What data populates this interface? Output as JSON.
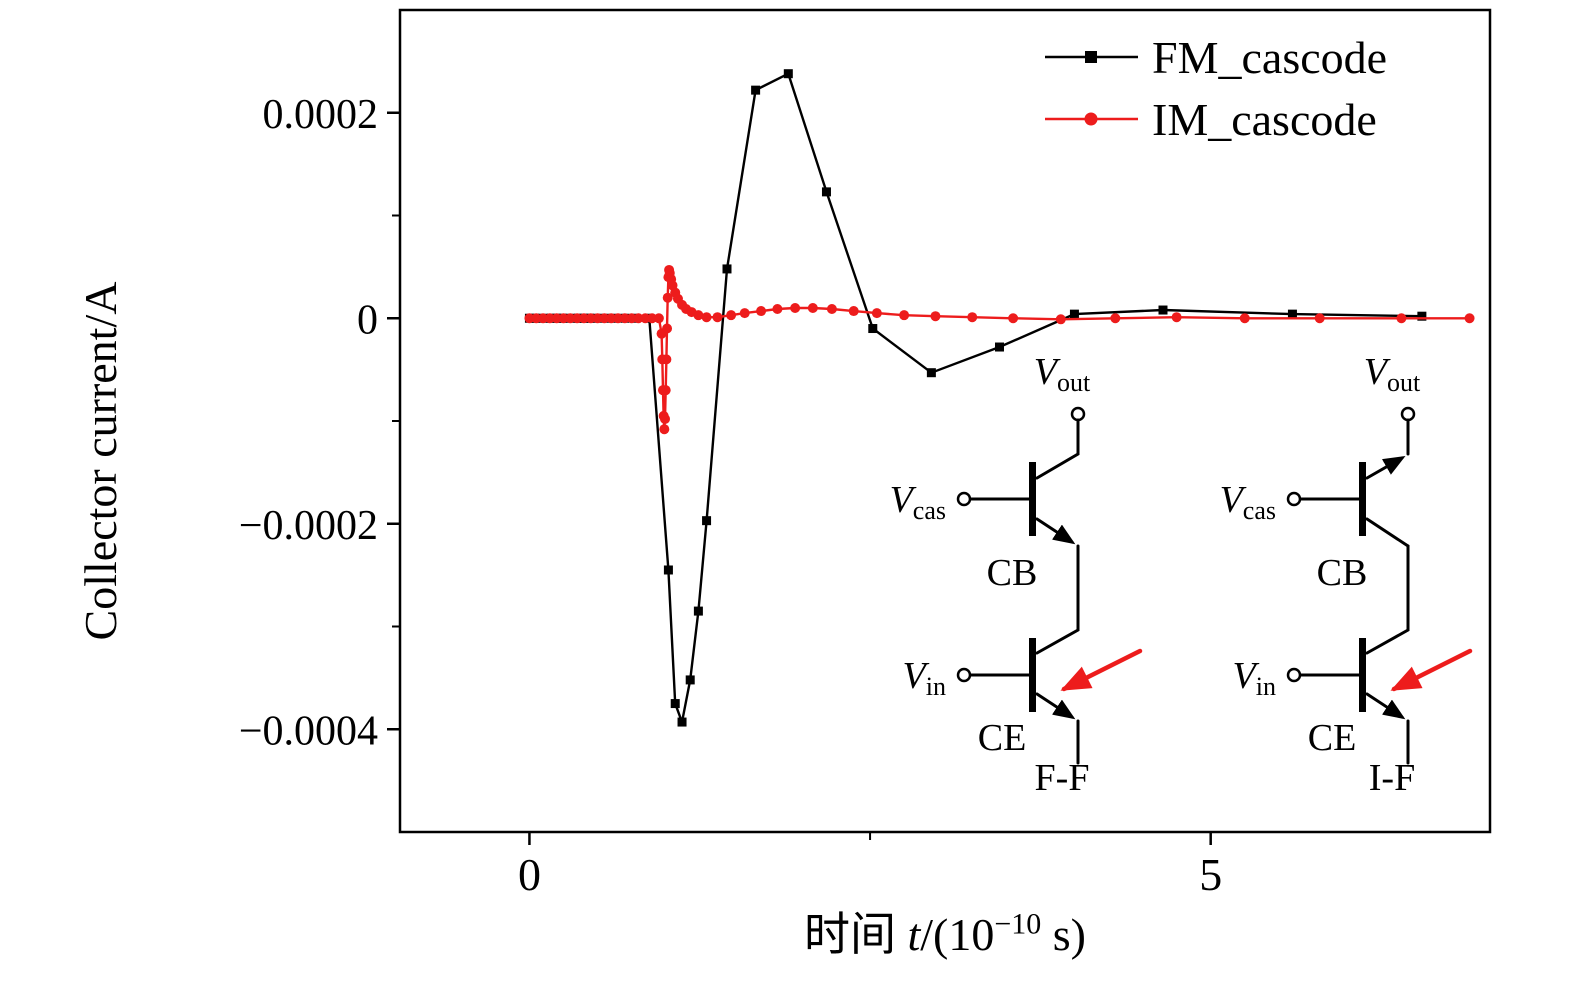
{
  "ylabel": "Collector current/A",
  "xlabel_parts": {
    "prefix": "时间 ",
    "variable": "t",
    "open": "/(10",
    "exponent": "−10",
    "close": " s)"
  },
  "chart_data": {
    "type": "line",
    "title": "",
    "xlabel": "时间 t/(10^−10 s)",
    "ylabel": "Collector current/A",
    "xlim": [
      -0.95,
      7.05
    ],
    "ylim": [
      -0.0005,
      0.0003
    ],
    "grid": false,
    "legend_position": "top-right",
    "x_major_ticks": [
      {
        "value": 0,
        "label": "0"
      },
      {
        "value": 5,
        "label": "5"
      }
    ],
    "x_minor_ticks": [
      2.5
    ],
    "y_major_ticks": [
      {
        "value": 0.0002,
        "label": "0.0002"
      },
      {
        "value": 0,
        "label": "0"
      },
      {
        "value": -0.0002,
        "label": "−0.0002"
      },
      {
        "value": -0.0004,
        "label": "−0.0004"
      }
    ],
    "y_minor_ticks": [
      0.0001,
      -0.0001,
      -0.0003
    ],
    "series": [
      {
        "name": "FM_cascode",
        "color": "#000000",
        "marker": "square",
        "points": [
          [
            0.0,
            0
          ],
          [
            0.04,
            0
          ],
          [
            0.08,
            0
          ],
          [
            0.12,
            0
          ],
          [
            0.16,
            0
          ],
          [
            0.2,
            0
          ],
          [
            0.24,
            0
          ],
          [
            0.28,
            0
          ],
          [
            0.32,
            0
          ],
          [
            0.36,
            0
          ],
          [
            0.4,
            0
          ],
          [
            0.44,
            0
          ],
          [
            0.48,
            0
          ],
          [
            0.52,
            0
          ],
          [
            0.57,
            0
          ],
          [
            0.63,
            0
          ],
          [
            0.7,
            0
          ],
          [
            0.78,
            0
          ],
          [
            0.88,
            0
          ],
          [
            1.02,
            -0.000245
          ],
          [
            1.07,
            -0.000375
          ],
          [
            1.12,
            -0.000393
          ],
          [
            1.18,
            -0.000352
          ],
          [
            1.24,
            -0.000285
          ],
          [
            1.3,
            -0.000197
          ],
          [
            1.45,
            4.8e-05
          ],
          [
            1.66,
            0.000222
          ],
          [
            1.9,
            0.000238
          ],
          [
            2.18,
            0.000123
          ],
          [
            2.52,
            -1e-05
          ],
          [
            2.95,
            -5.3e-05
          ],
          [
            3.45,
            -2.8e-05
          ],
          [
            4.0,
            4e-06
          ],
          [
            4.65,
            8e-06
          ],
          [
            5.6,
            4e-06
          ],
          [
            6.55,
            2e-06
          ]
        ]
      },
      {
        "name": "IM_cascode",
        "color": "#ed1c1c",
        "marker": "circle",
        "points": [
          [
            0.0,
            0
          ],
          [
            0.05,
            0
          ],
          [
            0.1,
            0
          ],
          [
            0.15,
            0
          ],
          [
            0.2,
            0
          ],
          [
            0.25,
            0
          ],
          [
            0.3,
            0
          ],
          [
            0.35,
            0
          ],
          [
            0.4,
            0
          ],
          [
            0.45,
            0
          ],
          [
            0.5,
            0
          ],
          [
            0.55,
            0
          ],
          [
            0.6,
            0
          ],
          [
            0.65,
            0
          ],
          [
            0.7,
            0
          ],
          [
            0.75,
            0
          ],
          [
            0.8,
            0
          ],
          [
            0.85,
            0
          ],
          [
            0.9,
            0
          ],
          [
            0.95,
            0
          ],
          [
            0.97,
            -1.5e-05
          ],
          [
            0.975,
            -4e-05
          ],
          [
            0.98,
            -7e-05
          ],
          [
            0.985,
            -9.5e-05
          ],
          [
            0.99,
            -0.000108
          ],
          [
            0.995,
            -9.8e-05
          ],
          [
            1.0,
            -7e-05
          ],
          [
            1.005,
            -4e-05
          ],
          [
            1.01,
            -1e-05
          ],
          [
            1.015,
            2e-05
          ],
          [
            1.02,
            4e-05
          ],
          [
            1.025,
            4.7e-05
          ],
          [
            1.03,
            4.4e-05
          ],
          [
            1.04,
            3.8e-05
          ],
          [
            1.05,
            3.2e-05
          ],
          [
            1.07,
            2.5e-05
          ],
          [
            1.09,
            1.9e-05
          ],
          [
            1.12,
            1.3e-05
          ],
          [
            1.15,
            9e-06
          ],
          [
            1.19,
            6e-06
          ],
          [
            1.24,
            3e-06
          ],
          [
            1.3,
            1e-06
          ],
          [
            1.38,
            1e-06
          ],
          [
            1.48,
            3e-06
          ],
          [
            1.58,
            5e-06
          ],
          [
            1.7,
            7e-06
          ],
          [
            1.82,
            9e-06
          ],
          [
            1.95,
            1e-05
          ],
          [
            2.08,
            1e-05
          ],
          [
            2.22,
            9e-06
          ],
          [
            2.38,
            7e-06
          ],
          [
            2.55,
            5e-06
          ],
          [
            2.75,
            3e-06
          ],
          [
            2.98,
            2e-06
          ],
          [
            3.25,
            1e-06
          ],
          [
            3.55,
            0.0
          ],
          [
            3.9,
            -1e-06
          ],
          [
            4.3,
            0.0
          ],
          [
            4.75,
            1e-06
          ],
          [
            5.25,
            0.0
          ],
          [
            5.8,
            0.0
          ],
          [
            6.4,
            0.0
          ],
          [
            6.9,
            0.0
          ]
        ]
      }
    ]
  },
  "circuits": {
    "v": "V",
    "out": "out",
    "cas": "cas",
    "in": "in",
    "cb": "CB",
    "ce": "CE",
    "left_caption": "F-F",
    "right_caption": "I-F",
    "red": "#ed1c1c"
  }
}
